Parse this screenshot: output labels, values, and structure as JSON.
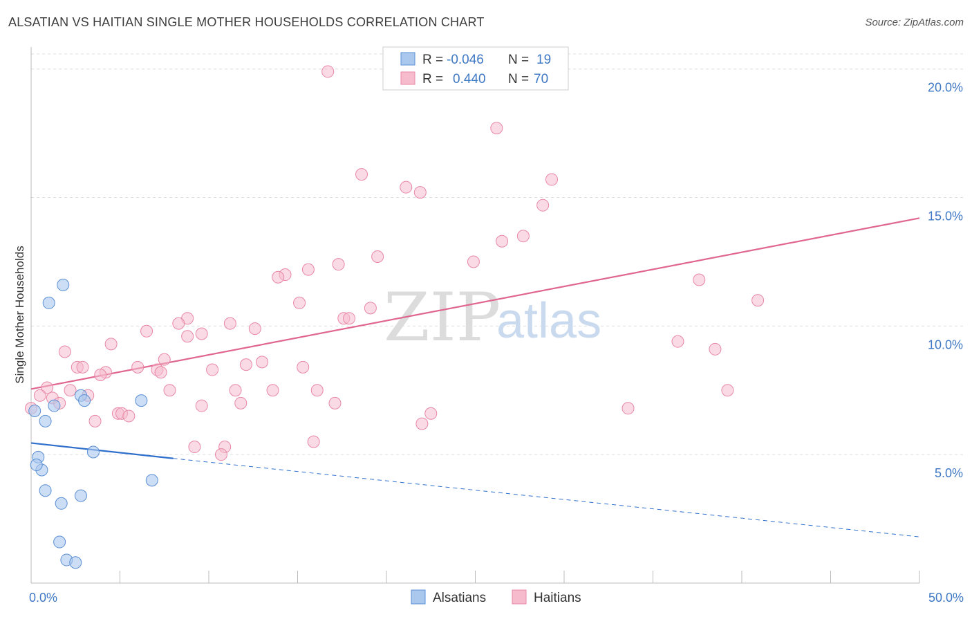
{
  "title": "ALSATIAN VS HAITIAN SINGLE MOTHER HOUSEHOLDS CORRELATION CHART",
  "source": "Source: ZipAtlas.com",
  "watermark": {
    "zip": "ZIP",
    "atlas": "atlas"
  },
  "legend": {
    "rows": [
      {
        "r_label": "R =",
        "r_value": "-0.046",
        "n_label": "N =",
        "n_value": "19"
      },
      {
        "r_label": "R =",
        "r_value": "0.440",
        "n_label": "N =",
        "n_value": "70"
      }
    ]
  },
  "bottom_legend": {
    "alsatians": "Alsatians",
    "haitians": "Haitians"
  },
  "chart_data": {
    "type": "scatter",
    "title": "ALSATIAN VS HAITIAN SINGLE MOTHER HOUSEHOLDS CORRELATION CHART",
    "xlabel": "",
    "ylabel": "Single Mother Households",
    "xlim": [
      0,
      50
    ],
    "ylim": [
      0,
      20.8
    ],
    "y_ticks": [
      {
        "value": 5,
        "label": "5.0%"
      },
      {
        "value": 10,
        "label": "10.0%"
      },
      {
        "value": 15,
        "label": "15.0%"
      },
      {
        "value": 20,
        "label": "20.0%"
      }
    ],
    "x_tick_labels": [
      {
        "value": 0,
        "label": "0.0%"
      },
      {
        "value": 50,
        "label": "50.0%"
      }
    ],
    "x_minor_ticks": [
      0,
      5,
      10,
      15,
      20,
      25,
      30,
      35,
      40,
      45,
      50
    ],
    "grid": true,
    "colors": {
      "alsatians_fill": "#aac8ee",
      "alsatians_stroke": "#5b8fd4",
      "alsatians_line": "#2f6fcc",
      "haitians_fill": "#f6bccd",
      "haitians_stroke": "#e887a6",
      "haitians_line": "#e0668f",
      "tick_text": "#3f78c4",
      "grid": "#dddddd"
    },
    "series": [
      {
        "name": "Alsatians",
        "r": -0.046,
        "n": 19,
        "trend": {
          "x0": 0,
          "y0": 5.45,
          "x1": 8,
          "y1": 4.85,
          "dash_x1": 50,
          "dash_y1": 1.8
        },
        "points": [
          [
            1.8,
            11.6
          ],
          [
            1.0,
            10.9
          ],
          [
            2.8,
            7.3
          ],
          [
            0.2,
            6.7
          ],
          [
            3.0,
            7.1
          ],
          [
            1.3,
            6.9
          ],
          [
            0.8,
            6.3
          ],
          [
            6.2,
            7.1
          ],
          [
            3.5,
            5.1
          ],
          [
            0.4,
            4.9
          ],
          [
            0.6,
            4.4
          ],
          [
            0.3,
            4.6
          ],
          [
            6.8,
            4.0
          ],
          [
            0.8,
            3.6
          ],
          [
            2.8,
            3.4
          ],
          [
            1.7,
            3.1
          ],
          [
            1.6,
            1.6
          ],
          [
            2.0,
            0.9
          ],
          [
            2.5,
            0.8
          ]
        ]
      },
      {
        "name": "Haitians",
        "r": 0.44,
        "n": 70,
        "trend": {
          "x0": 0,
          "y0": 7.55,
          "x1": 50,
          "y1": 14.2
        },
        "points": [
          [
            16.7,
            19.9
          ],
          [
            26.2,
            17.7
          ],
          [
            18.6,
            15.9
          ],
          [
            21.1,
            15.4
          ],
          [
            24.9,
            12.5
          ],
          [
            21.9,
            15.2
          ],
          [
            29.3,
            15.7
          ],
          [
            28.8,
            14.7
          ],
          [
            27.7,
            13.5
          ],
          [
            26.5,
            13.3
          ],
          [
            19.5,
            12.7
          ],
          [
            17.3,
            12.4
          ],
          [
            15.6,
            12.2
          ],
          [
            14.3,
            12.0
          ],
          [
            13.9,
            11.9
          ],
          [
            37.6,
            11.8
          ],
          [
            40.9,
            11.0
          ],
          [
            15.1,
            10.9
          ],
          [
            19.1,
            10.7
          ],
          [
            17.6,
            10.3
          ],
          [
            17.9,
            10.3
          ],
          [
            8.8,
            10.3
          ],
          [
            8.3,
            10.1
          ],
          [
            11.2,
            10.1
          ],
          [
            12.6,
            9.9
          ],
          [
            6.5,
            9.8
          ],
          [
            9.6,
            9.7
          ],
          [
            8.8,
            9.6
          ],
          [
            4.5,
            9.3
          ],
          [
            36.4,
            9.4
          ],
          [
            38.5,
            9.1
          ],
          [
            1.9,
            9.0
          ],
          [
            7.5,
            8.7
          ],
          [
            13.0,
            8.6
          ],
          [
            12.1,
            8.5
          ],
          [
            2.6,
            8.4
          ],
          [
            2.9,
            8.4
          ],
          [
            6.0,
            8.4
          ],
          [
            15.3,
            8.4
          ],
          [
            10.2,
            8.3
          ],
          [
            7.1,
            8.3
          ],
          [
            7.3,
            8.2
          ],
          [
            4.2,
            8.2
          ],
          [
            3.9,
            8.1
          ],
          [
            0.9,
            7.6
          ],
          [
            2.2,
            7.5
          ],
          [
            7.8,
            7.5
          ],
          [
            11.5,
            7.5
          ],
          [
            13.6,
            7.5
          ],
          [
            16.1,
            7.5
          ],
          [
            39.2,
            7.5
          ],
          [
            0.5,
            7.3
          ],
          [
            1.2,
            7.2
          ],
          [
            3.2,
            7.3
          ],
          [
            1.6,
            7.0
          ],
          [
            11.8,
            7.0
          ],
          [
            17.1,
            7.0
          ],
          [
            9.6,
            6.9
          ],
          [
            33.6,
            6.8
          ],
          [
            0.0,
            6.8
          ],
          [
            4.9,
            6.6
          ],
          [
            5.1,
            6.6
          ],
          [
            5.5,
            6.5
          ],
          [
            22.5,
            6.6
          ],
          [
            3.6,
            6.3
          ],
          [
            22.0,
            6.2
          ],
          [
            15.9,
            5.5
          ],
          [
            9.2,
            5.3
          ],
          [
            10.9,
            5.3
          ],
          [
            10.7,
            5.0
          ]
        ]
      }
    ]
  }
}
